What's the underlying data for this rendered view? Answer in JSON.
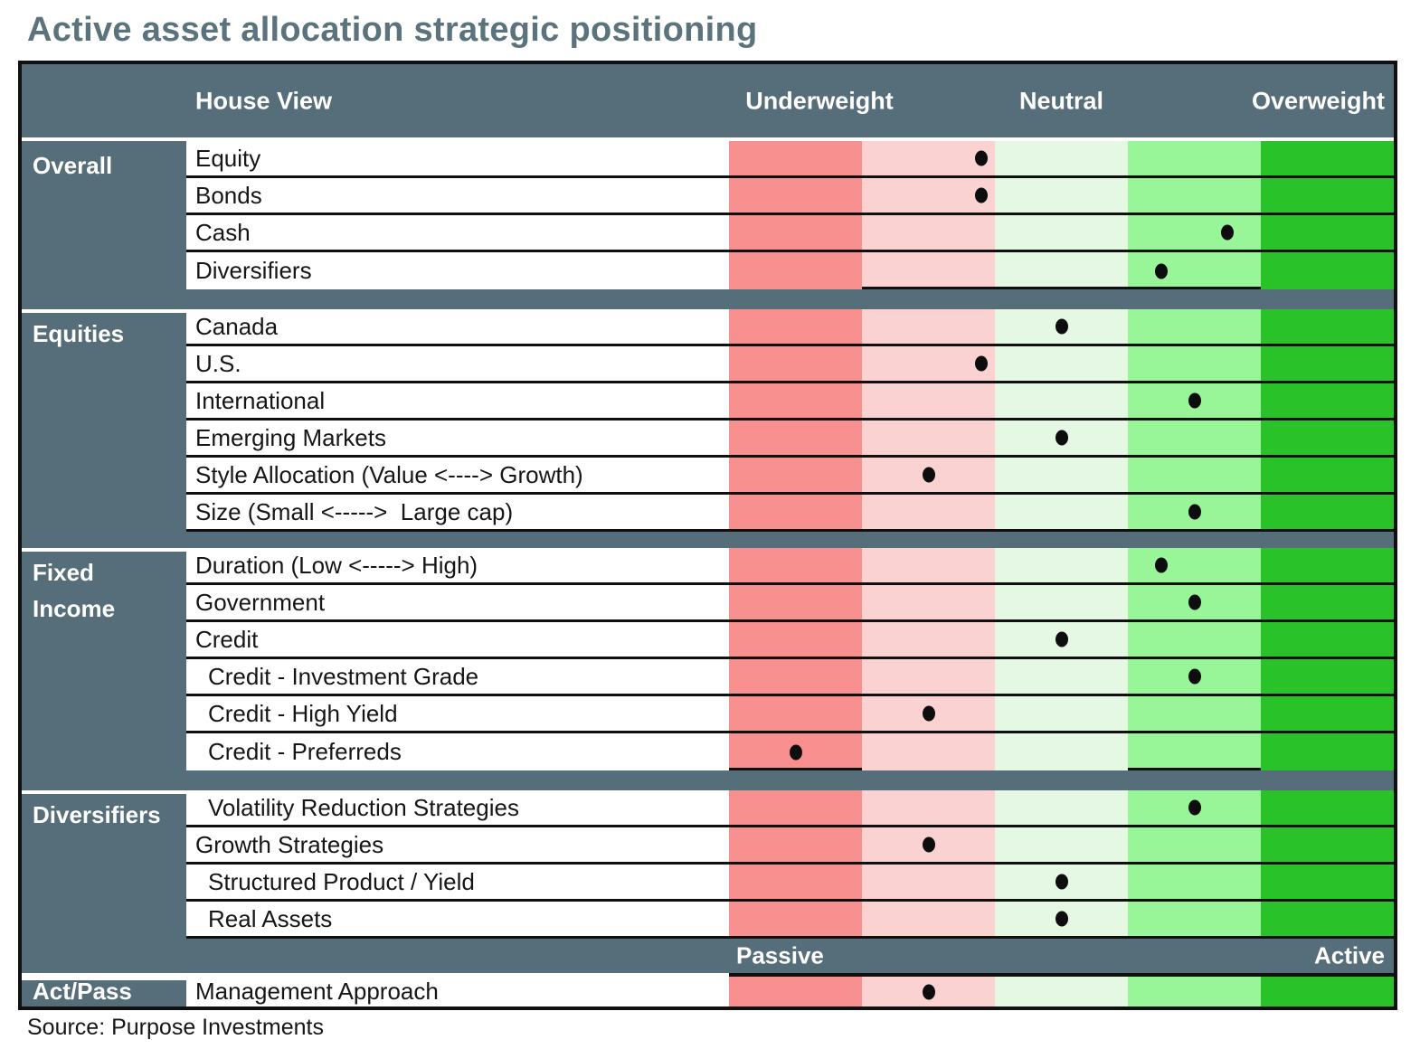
{
  "title": "Active asset allocation strategic positioning",
  "source": "Source: Purpose Investments",
  "header": {
    "house_view": "House View",
    "underweight": "Underweight",
    "neutral": "Neutral",
    "overweight": "Overweight"
  },
  "scale_bar": {
    "passive": "Passive",
    "active": "Active"
  },
  "colors": {
    "slate": "#566E79",
    "title_text": "#5A737C",
    "border": "#101010",
    "dot": "#0D0D0D",
    "bands": [
      "#F89090",
      "#FBD2D2",
      "#E4F8E4",
      "#98F598",
      "#29C229"
    ],
    "band_names": [
      "strong-underweight-band",
      "slight-underweight-band",
      "neutral-band",
      "slight-overweight-band",
      "strong-overweight-band"
    ]
  },
  "chart_data": {
    "type": "table",
    "scale": {
      "min_label": "Underweight",
      "mid_label": "Neutral",
      "max_label": "Overweight",
      "position_units": "percent 0-100 across the 5 colored bands; 50 = neutral; band index 1 (deep underweight) to 5 (deep overweight)"
    },
    "groups": [
      {
        "name": "Overall",
        "bottom_marks": [
          [
            20,
            80
          ]
        ],
        "rows": [
          {
            "label": "Equity",
            "position": 38,
            "band": 2
          },
          {
            "label": "Bonds",
            "position": 38,
            "band": 2
          },
          {
            "label": "Cash",
            "position": 75,
            "band": 4
          },
          {
            "label": "Diversifiers",
            "position": 65,
            "band": 4
          }
        ]
      },
      {
        "name": "Equities",
        "last_row_full_border": true,
        "rows": [
          {
            "label": "Canada",
            "position": 50,
            "band": 3
          },
          {
            "label": "U.S.",
            "position": 38,
            "band": 2
          },
          {
            "label": "International",
            "position": 70,
            "band": 4
          },
          {
            "label": "Emerging Markets",
            "position": 50,
            "band": 3
          },
          {
            "label": "Style Allocation (Value <----> Growth)",
            "position": 30,
            "band": 2
          },
          {
            "label": "Size (Small <----->  Large cap)",
            "position": 70,
            "band": 4
          }
        ]
      },
      {
        "name": "Fixed Income",
        "bottom_marks": [
          [
            0,
            20
          ],
          [
            60,
            80
          ]
        ],
        "rows": [
          {
            "label": "Duration (Low <-----> High)",
            "position": 65,
            "band": 4
          },
          {
            "label": "Government",
            "position": 70,
            "band": 4
          },
          {
            "label": "Credit",
            "position": 50,
            "band": 3
          },
          {
            "label": "Credit - Investment Grade",
            "position": 70,
            "band": 4,
            "indent": true
          },
          {
            "label": "Credit - High Yield",
            "position": 30,
            "band": 2,
            "indent": true
          },
          {
            "label": "Credit - Preferreds",
            "position": 10,
            "band": 1,
            "indent": true
          }
        ]
      },
      {
        "name": "Diversifiers",
        "last_row_full_border": true,
        "rows": [
          {
            "label": "Volatility Reduction Strategies",
            "position": 70,
            "band": 4,
            "indent": true
          },
          {
            "label": "Growth Strategies",
            "position": 30,
            "band": 2
          },
          {
            "label": "Structured Product / Yield",
            "position": 50,
            "band": 3,
            "indent": true
          },
          {
            "label": "Real Assets",
            "position": 50,
            "band": 3,
            "indent": true
          }
        ]
      },
      {
        "name": "Act/Pass",
        "rows": [
          {
            "label": "Management Approach",
            "position": 30,
            "band": 2
          }
        ]
      }
    ]
  }
}
